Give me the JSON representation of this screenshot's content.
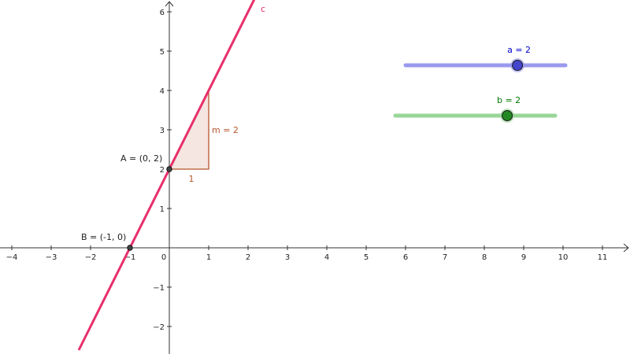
{
  "graphics_view": {
    "x_axis": {
      "min": -4.2,
      "max": 11.6,
      "ticks": [
        -4,
        -3,
        -2,
        -1,
        0,
        1,
        2,
        3,
        4,
        5,
        6,
        7,
        8,
        9,
        10,
        11
      ]
    },
    "y_axis": {
      "min": -2.7,
      "max": 6.3,
      "ticks": [
        -2,
        -1,
        1,
        2,
        3,
        4,
        5,
        6
      ]
    },
    "origin_label": "0",
    "grid": false
  },
  "line_c": {
    "name": "c",
    "slope": 2,
    "intercept": 2,
    "color": "#e8306a"
  },
  "points": [
    {
      "id": "A",
      "label": "A = (0, 2)",
      "x": 0,
      "y": 2
    },
    {
      "id": "B",
      "label": "B = (-1, 0)",
      "x": -1,
      "y": 0
    }
  ],
  "slope_triangle": {
    "run_label": "1",
    "rise_label": "m = 2",
    "color": "#b5552a"
  },
  "sliders": [
    {
      "id": "a",
      "label": "a = 2",
      "value": 2,
      "min": -5,
      "max": 5,
      "color": "#4444cc",
      "track_color": "#9999ee",
      "text_color": "#0000cc"
    },
    {
      "id": "b",
      "label": "b = 2",
      "value": 2,
      "min": -5,
      "max": 5,
      "color": "#228822",
      "track_color": "#99d699",
      "text_color": "#007700"
    }
  ]
}
